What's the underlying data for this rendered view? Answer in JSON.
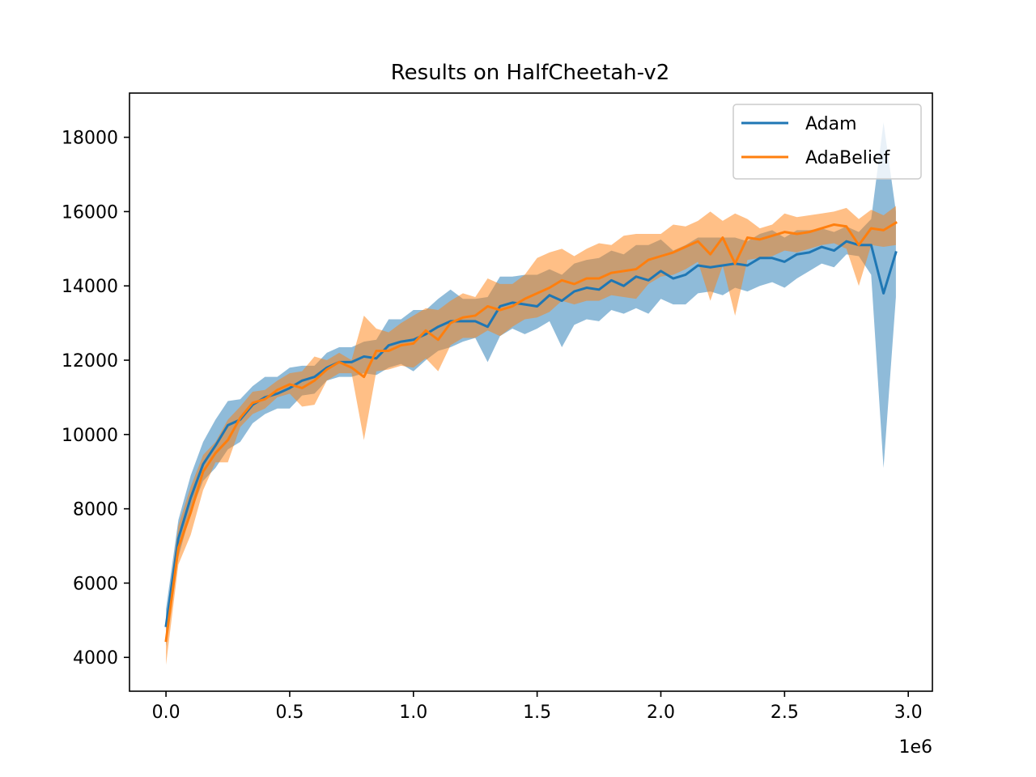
{
  "chart_data": {
    "type": "line",
    "title": "Results on HalfCheetah-v2",
    "xlabel": "",
    "ylabel": "",
    "x_offset_label": "1e6",
    "xlim": [
      -0.1475,
      3.0975
    ],
    "ylim": [
      3090,
      19190
    ],
    "x_ticks": [
      0.0,
      0.5,
      1.0,
      1.5,
      2.0,
      2.5,
      3.0
    ],
    "x_tick_labels": [
      "0.0",
      "0.5",
      "1.0",
      "1.5",
      "2.0",
      "2.5",
      "3.0"
    ],
    "y_ticks": [
      4000,
      6000,
      8000,
      10000,
      12000,
      14000,
      16000,
      18000
    ],
    "y_tick_labels": [
      "4000",
      "6000",
      "8000",
      "10000",
      "12000",
      "14000",
      "16000",
      "18000"
    ],
    "grid": false,
    "legend_position": "top-right",
    "x": [
      0.0,
      0.05,
      0.1,
      0.15,
      0.2,
      0.25,
      0.3,
      0.35,
      0.4,
      0.45,
      0.5,
      0.55,
      0.6,
      0.65,
      0.7,
      0.75,
      0.8,
      0.85,
      0.9,
      0.95,
      1.0,
      1.05,
      1.1,
      1.15,
      1.2,
      1.25,
      1.3,
      1.35,
      1.4,
      1.45,
      1.5,
      1.55,
      1.6,
      1.65,
      1.7,
      1.75,
      1.8,
      1.85,
      1.9,
      1.95,
      2.0,
      2.05,
      2.1,
      2.15,
      2.2,
      2.25,
      2.3,
      2.35,
      2.4,
      2.45,
      2.5,
      2.55,
      2.6,
      2.65,
      2.7,
      2.75,
      2.8,
      2.85,
      2.9,
      2.95
    ],
    "series": [
      {
        "name": "Adam",
        "color": "#1f77b4",
        "fill_color": "#1f77b4",
        "values": [
          4850,
          7200,
          8300,
          9200,
          9700,
          10250,
          10400,
          10800,
          11000,
          11100,
          11250,
          11450,
          11550,
          11800,
          11950,
          11950,
          12100,
          12050,
          12400,
          12500,
          12550,
          12700,
          12900,
          13050,
          13050,
          13050,
          12900,
          13450,
          13550,
          13500,
          13450,
          13750,
          13600,
          13850,
          13950,
          13900,
          14150,
          14000,
          14250,
          14150,
          14400,
          14200,
          14300,
          14550,
          14500,
          14550,
          14600,
          14550,
          14750,
          14750,
          14650,
          14850,
          14900,
          15050,
          14950,
          15200,
          15100,
          15100,
          13800,
          14900
        ],
        "lower": [
          4300,
          6700,
          7900,
          8750,
          9100,
          9600,
          9800,
          10300,
          10550,
          10700,
          10700,
          11050,
          11100,
          11450,
          11550,
          11550,
          11650,
          11600,
          11800,
          11900,
          11700,
          12000,
          12250,
          12350,
          12500,
          12600,
          11950,
          12650,
          12850,
          12700,
          12850,
          13050,
          12350,
          12950,
          13100,
          13050,
          13350,
          13250,
          13400,
          13250,
          13650,
          13500,
          13500,
          13800,
          13850,
          13750,
          13950,
          13850,
          14000,
          14100,
          13950,
          14200,
          14400,
          14600,
          14500,
          14850,
          14800,
          14300,
          9100,
          13700
        ],
        "upper": [
          5300,
          7700,
          8900,
          9800,
          10400,
          10900,
          10950,
          11300,
          11550,
          11550,
          11800,
          11850,
          11850,
          12200,
          12350,
          12350,
          12500,
          12550,
          13100,
          13100,
          13350,
          13350,
          13650,
          13900,
          13650,
          13650,
          13700,
          14250,
          14250,
          14300,
          14300,
          14450,
          14300,
          14600,
          14700,
          14750,
          14950,
          14850,
          15100,
          15100,
          15250,
          14950,
          15100,
          15300,
          15300,
          15300,
          15300,
          15200,
          15400,
          15500,
          15300,
          15500,
          15500,
          15550,
          15450,
          15600,
          15450,
          15800,
          18400,
          16000
        ]
      },
      {
        "name": "AdaBelief",
        "color": "#ff7f0e",
        "fill_color": "#ff7f0e",
        "values": [
          4450,
          6950,
          7900,
          9000,
          9500,
          9850,
          10450,
          10850,
          10950,
          11200,
          11350,
          11250,
          11450,
          11750,
          11950,
          11800,
          11550,
          12250,
          12250,
          12400,
          12450,
          12800,
          12550,
          13000,
          13150,
          13200,
          13450,
          13350,
          13450,
          13650,
          13800,
          13950,
          14150,
          14050,
          14200,
          14200,
          14350,
          14400,
          14450,
          14700,
          14800,
          14900,
          15050,
          15200,
          14850,
          15300,
          14600,
          15300,
          15250,
          15350,
          15450,
          15400,
          15450,
          15550,
          15650,
          15600,
          15100,
          15550,
          15500,
          15700
        ],
        "lower": [
          3800,
          6500,
          7300,
          8500,
          9250,
          9250,
          10200,
          10550,
          10700,
          11000,
          11100,
          10750,
          10800,
          11450,
          11650,
          11650,
          9850,
          11700,
          11750,
          11850,
          11800,
          12050,
          11700,
          12400,
          12600,
          12600,
          12800,
          12650,
          12900,
          13100,
          13150,
          13300,
          13600,
          13500,
          13600,
          13600,
          13750,
          13700,
          13650,
          14050,
          14250,
          14300,
          14450,
          14650,
          13600,
          14550,
          13200,
          14700,
          14750,
          14800,
          14950,
          14900,
          15000,
          15100,
          15150,
          15000,
          14000,
          15100,
          15050,
          15100
        ],
        "upper": [
          5000,
          7550,
          8600,
          9450,
          9800,
          10400,
          10750,
          11150,
          11200,
          11450,
          11650,
          11700,
          12100,
          12000,
          12200,
          12000,
          13200,
          12850,
          12750,
          13000,
          13200,
          13400,
          13350,
          13600,
          13800,
          13700,
          14200,
          14050,
          14050,
          14300,
          14750,
          14900,
          15000,
          14800,
          15000,
          15150,
          15100,
          15350,
          15400,
          15400,
          15400,
          15650,
          15600,
          15750,
          16000,
          15750,
          15950,
          15800,
          15550,
          15650,
          15950,
          15850,
          15900,
          15950,
          16000,
          16100,
          15800,
          16050,
          15900,
          16150
        ]
      }
    ]
  }
}
